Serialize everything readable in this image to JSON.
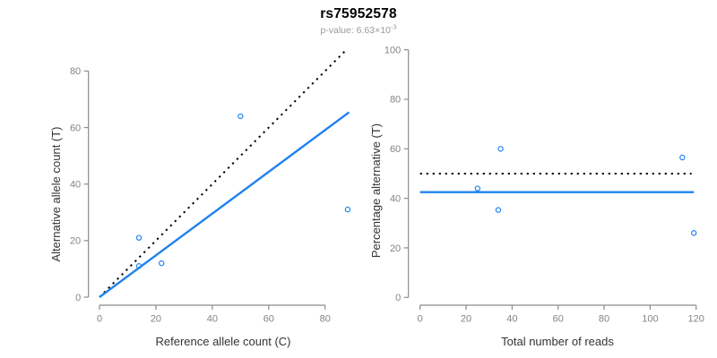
{
  "header": {
    "title": "rs75952578",
    "subtitle_base": "p-value: 6.63×10",
    "subtitle_exponent": "-3"
  },
  "style": {
    "point_color": "#1f82f0",
    "fit_line_color": "#1f82f0",
    "dotted_line_color": "#000000",
    "axis_color": "#8c8c8c",
    "tick_label_color": "#848484",
    "axis_title_color": "#333333",
    "subtitle_color": "#9a9a9a",
    "background": "#ffffff"
  },
  "chart_data": [
    {
      "type": "scatter",
      "name": "allele-counts-scatter",
      "xlabel": "Reference allele count (C)",
      "ylabel": "Alternative allele count (T)",
      "xlim": [
        0,
        80
      ],
      "ylim": [
        0,
        80
      ],
      "xticks": [
        0,
        20,
        40,
        60,
        80
      ],
      "yticks": [
        0,
        20,
        40,
        60,
        80
      ],
      "grid": false,
      "point_style": "open-circle",
      "points": [
        [
          14,
          21
        ],
        [
          14,
          11
        ],
        [
          22,
          12
        ],
        [
          50,
          64
        ],
        [
          88,
          31
        ]
      ],
      "lines": [
        {
          "name": "identity-line",
          "style": "dotted",
          "color": "#000000",
          "from": [
            0,
            0
          ],
          "to": [
            87,
            87
          ]
        },
        {
          "name": "fit-line",
          "style": "solid",
          "color": "#1f82f0",
          "from": [
            0,
            0
          ],
          "to": [
            88.5,
            65.4
          ]
        }
      ]
    },
    {
      "type": "scatter",
      "name": "percentage-alternative-scatter",
      "xlabel": "Total number of reads",
      "ylabel": "Percentage alternative (T)",
      "xlim": [
        0,
        120
      ],
      "ylim": [
        0,
        100
      ],
      "xticks": [
        0,
        20,
        40,
        60,
        80,
        100,
        120
      ],
      "yticks": [
        0,
        20,
        40,
        60,
        80,
        100
      ],
      "grid": false,
      "point_style": "open-circle",
      "points": [
        [
          35,
          60
        ],
        [
          25,
          44
        ],
        [
          34,
          35.3
        ],
        [
          114,
          56.5
        ],
        [
          119,
          26
        ]
      ],
      "lines": [
        {
          "name": "expected-50pct-line",
          "style": "dotted",
          "color": "#000000",
          "y": 50,
          "span": [
            0,
            118
          ]
        },
        {
          "name": "observed-pct-line",
          "style": "solid",
          "color": "#1f82f0",
          "y": 42.5,
          "span": [
            0,
            119
          ]
        }
      ]
    }
  ]
}
